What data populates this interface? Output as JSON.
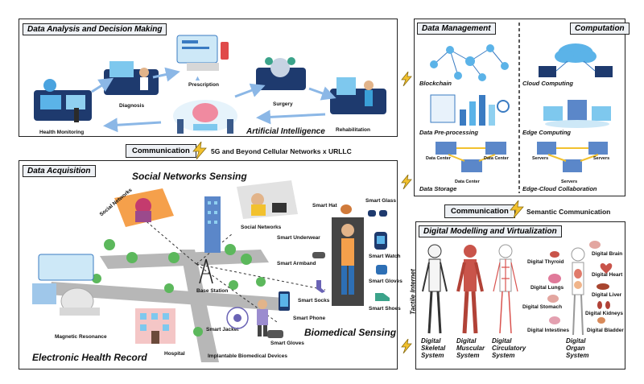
{
  "panels": {
    "analysis": {
      "title": "Data Analysis and Decision Making",
      "labels": {
        "health_monitoring": "Health Monitoring",
        "diagnosis": "Diagnosis",
        "prescription": "Prescription",
        "surgery": "Surgery",
        "rehabilitation": "Rehabilitation",
        "ai": "Artificial Intelligence"
      }
    },
    "management": {
      "title": "Data Management",
      "labels": {
        "blockchain": "Blockchain",
        "preprocessing": "Data Pre-processing",
        "storage": "Data Storage",
        "data_center_1": "Data Center",
        "data_center_2": "Data Center",
        "data_center_3": "Data Center"
      }
    },
    "computation": {
      "title": "Computation",
      "labels": {
        "cloud": "Cloud Computing",
        "edge": "Edge Computing",
        "edge_cloud": "Edge-Cloud Collaboration",
        "servers_1": "Servers",
        "servers_2": "Servers",
        "servers_3": "Servers"
      }
    },
    "acquisition": {
      "title": "Data Acquisition",
      "labels": {
        "social_sensing": "Social Networks Sensing",
        "social_networks_1": "Social Networks",
        "social_networks_2": "Social Networks",
        "smart_hat": "Smart Hat",
        "smart_glass": "Smart Glass",
        "smart_underwear": "Smart Underwear",
        "smart_watch": "Smart Watch",
        "smart_armband": "Smart Armband",
        "smart_gloves_1": "Smart Gloves",
        "smart_socks": "Smart Socks",
        "smart_shoes": "Smart Shoes",
        "base_station": "Base Station",
        "smart_phone": "Smart Phone",
        "smart_jacket": "Smart Jacket",
        "smart_gloves_2": "Smart Gloves",
        "magnetic_resonance": "Magnetic Resonance",
        "hospital": "Hospital",
        "implantable": "Implantable Biomedical Devices",
        "biomedical": "Biomedical Sensing",
        "ehr": "Electronic Health Record"
      }
    },
    "modelling": {
      "title": "Digital Modelling and Virtualization",
      "labels": {
        "skeletal": "Digital Skeletal System",
        "muscular": "Digital Muscular System",
        "circulatory": "Digital Circulatory System",
        "organ": "Digital Organ System",
        "thyroid": "Digital Thyroid",
        "lungs": "Digital Lungs",
        "stomach": "Digital Stomach",
        "intestines": "Digital Intestines",
        "brain": "Digital Brain",
        "heart": "Digital Heart",
        "liver": "Digital Liver",
        "kidneys": "Digital Kidneys",
        "bladder": "Digital Bladder"
      }
    }
  },
  "links": {
    "comm_top": "Communication",
    "comm_top_desc": "5G and Beyond Cellular Networks x URLLC",
    "comm_right": "Communication",
    "comm_right_desc": "Semantic Communication",
    "tactile": "Tactile Internet"
  },
  "colors": {
    "accent_blue": "#2d6fb5",
    "bolt_yellow": "#f2c12e",
    "panel_title_bg": "#eef1f5"
  }
}
